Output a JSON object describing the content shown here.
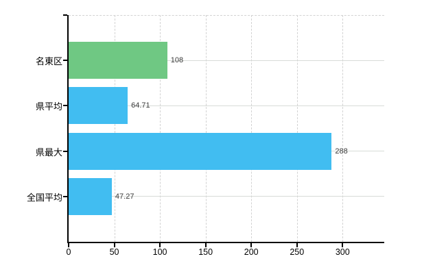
{
  "chart_data": {
    "type": "bar",
    "orientation": "horizontal",
    "title": "",
    "xlabel": "",
    "ylabel": "",
    "categories": [
      "名東区",
      "県平均",
      "県最大",
      "全国平均"
    ],
    "values": [
      108,
      64.71,
      288,
      47.27
    ],
    "value_labels": [
      "108",
      "64.71",
      "288",
      "47.27"
    ],
    "bar_colors": [
      "#6fc883",
      "#41bdf1",
      "#41bdf1",
      "#41bdf1"
    ],
    "x_ticks": [
      0,
      50,
      100,
      150,
      200,
      250,
      300
    ],
    "x_tick_labels": [
      "0",
      "50",
      "100",
      "150",
      "200",
      "250",
      "300"
    ],
    "xlim": [
      0,
      345.6
    ],
    "grid": true,
    "legend": false,
    "colors": {
      "background": "#ffffff",
      "axis": "#000000",
      "grid_vertical": "#d2d2d2",
      "grid_horizontal": "#d7dbd7",
      "value_label": "#3a3a3a",
      "tick_label": "#000000"
    }
  }
}
